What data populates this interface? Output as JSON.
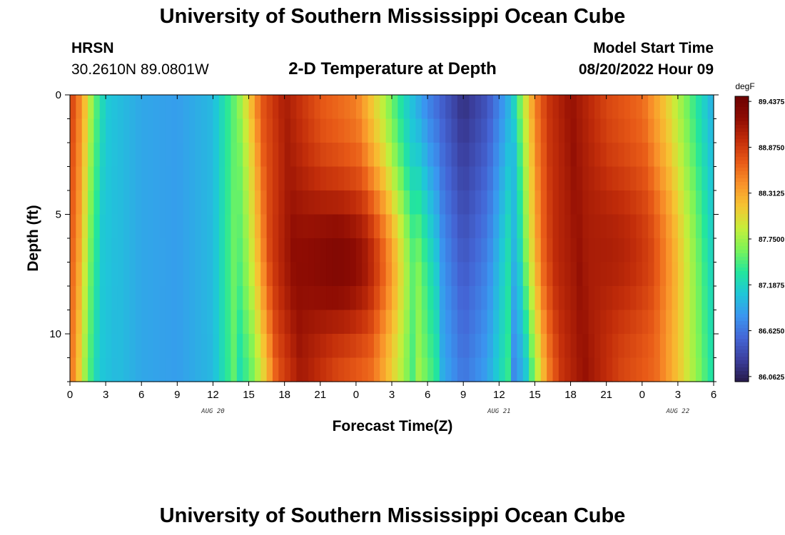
{
  "page": {
    "title": "University of Southern Mississippi Ocean Cube",
    "station": "HRSN",
    "location": "30.2610N  89.0801W",
    "plot_title": "2-D Temperature at Depth",
    "model_start_label": "Model Start Time",
    "model_start_value": "08/20/2022 Hour 09",
    "bottom_title": "University of Southern Mississippi Ocean Cube"
  },
  "chart_data": {
    "type": "heatmap",
    "title": "2-D Temperature at Depth",
    "xlabel": "Forecast Time(Z)",
    "ylabel": "Depth (ft)",
    "x_unit": "hours from 00Z Aug 20",
    "x_range": [
      0,
      54
    ],
    "x_tick_labels": [
      "0",
      "3",
      "6",
      "9",
      "12",
      "15",
      "18",
      "21",
      "0",
      "3",
      "6",
      "9",
      "12",
      "15",
      "18",
      "21",
      "0",
      "3",
      "6"
    ],
    "date_labels": [
      {
        "label": "AUG 20",
        "at_hour": 12
      },
      {
        "label": "AUG 21",
        "at_hour": 36
      },
      {
        "label": "AUG 22",
        "at_hour": 51
      }
    ],
    "y_range": [
      0,
      12
    ],
    "y_reversed": true,
    "y_tick_labels": [
      "0",
      "5",
      "10"
    ],
    "colorbar": {
      "unit": "degF",
      "tick_labels": [
        "89.4375",
        "88.8750",
        "88.3125",
        "87.7500",
        "87.1875",
        "86.6250",
        "86.0625"
      ],
      "range": [
        86.0,
        89.5
      ],
      "colormap": [
        "#271a4a",
        "#3b3f9e",
        "#4466d6",
        "#3a96f0",
        "#1fc7d8",
        "#23e69c",
        "#7cf458",
        "#c7ee3a",
        "#f6c432",
        "#f9922a",
        "#e85a17",
        "#c22d0a",
        "#8e0c03",
        "#6b0202"
      ]
    },
    "temperature_profile_surface": [
      {
        "hour": 0,
        "temp": 88.9
      },
      {
        "hour": 1,
        "temp": 88.4
      },
      {
        "hour": 2,
        "temp": 87.6
      },
      {
        "hour": 3,
        "temp": 87.1
      },
      {
        "hour": 6,
        "temp": 86.9
      },
      {
        "hour": 9,
        "temp": 86.85
      },
      {
        "hour": 12,
        "temp": 87.0
      },
      {
        "hour": 14,
        "temp": 87.6
      },
      {
        "hour": 15,
        "temp": 88.1
      },
      {
        "hour": 16,
        "temp": 88.7
      },
      {
        "hour": 18,
        "temp": 89.1
      },
      {
        "hour": 21,
        "temp": 88.7
      },
      {
        "hour": 24,
        "temp": 88.5
      },
      {
        "hour": 26,
        "temp": 87.9
      },
      {
        "hour": 28,
        "temp": 87.2
      },
      {
        "hour": 30,
        "temp": 86.7
      },
      {
        "hour": 33,
        "temp": 86.15
      },
      {
        "hour": 35,
        "temp": 86.4
      },
      {
        "hour": 37,
        "temp": 87.0
      },
      {
        "hour": 38,
        "temp": 87.8
      },
      {
        "hour": 39,
        "temp": 88.5
      },
      {
        "hour": 40,
        "temp": 88.9
      },
      {
        "hour": 42,
        "temp": 89.2
      },
      {
        "hour": 45,
        "temp": 88.8
      },
      {
        "hour": 48,
        "temp": 88.6
      },
      {
        "hour": 50,
        "temp": 88.1
      },
      {
        "hour": 52,
        "temp": 87.5
      },
      {
        "hour": 54,
        "temp": 86.9
      }
    ],
    "warm_cores": [
      {
        "hour": 22.5,
        "depth_ft": 7,
        "temp": 89.4
      },
      {
        "hour": 45,
        "depth_ft": 6.5,
        "temp": 89.1
      }
    ]
  }
}
